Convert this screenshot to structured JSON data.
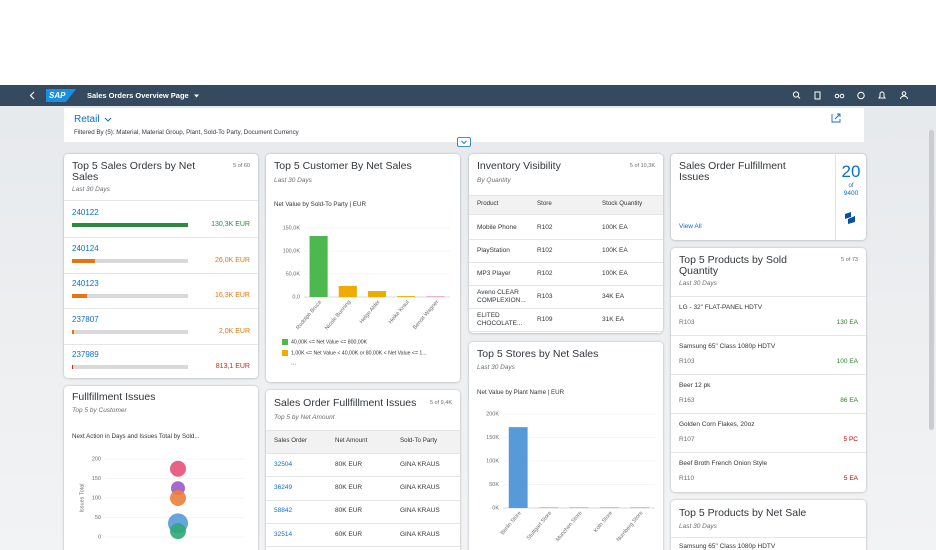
{
  "shell": {
    "logo": "SAP",
    "title": "Sales Orders Overview Page"
  },
  "header": {
    "title": "Retail",
    "filter": "Filtered By (5): Material, Material Group, Plant, Sold-To Party, Document Currency"
  },
  "sales_orders": {
    "title": "Top 5 Sales Orders by Net Sales",
    "count": "5 of 60",
    "subtitle": "Last 30 Days",
    "items": [
      {
        "id": "240122",
        "value": 130300,
        "value_label": "130,3K EUR",
        "color": "#2b8a3e"
      },
      {
        "id": "240124",
        "value": 26000,
        "value_label": "26,0K EUR",
        "color": "#e9730c"
      },
      {
        "id": "240123",
        "value": 16300,
        "value_label": "16,3K EUR",
        "color": "#e9730c"
      },
      {
        "id": "237807",
        "value": 2000,
        "value_label": "2,0K EUR",
        "color": "#e9730c"
      },
      {
        "id": "237989",
        "value": 813.1,
        "value_label": "813,1 EUR",
        "color": "#d0271d"
      }
    ]
  },
  "fulfillment_issues": {
    "title": "Fullfillment Issues",
    "subtitle": "Top 5 by Customer",
    "chart": {
      "type": "bubble",
      "title": "Next Action in Days and Issues Total by Sold...",
      "y_label": "Issues Total",
      "ylim": [
        0,
        200
      ],
      "yticks": [
        0,
        50,
        100,
        150,
        200
      ],
      "values": [
        175,
        125,
        100,
        35,
        15
      ],
      "sizes": [
        8,
        7,
        8,
        10,
        8
      ],
      "colors": [
        "#e8507a",
        "#9b59c8",
        "#eb7f3c",
        "#5899da",
        "#2fa874"
      ]
    }
  },
  "customer_sales": {
    "title": "Top 5 Customer By Net Sales",
    "subtitle": "Last 30 Days",
    "chart": {
      "type": "bar",
      "title": "Net Value by Sold-To Party | EUR",
      "categories": [
        "Rudolph Bruce",
        "Nicole Bunning",
        "Helge Alder",
        "Heike Kraut",
        "Benoit Wagner"
      ],
      "values": [
        132600,
        24000,
        13000,
        2000,
        1000
      ],
      "colors": [
        "#4cb84e",
        "#f0ab00",
        "#f0ab00",
        "#f0ab00",
        "#e0607e"
      ],
      "ylim": [
        0,
        150000
      ],
      "yticks": [
        {
          "value": 0,
          "label": "0,0"
        },
        {
          "value": 50000,
          "label": "50,0K"
        },
        {
          "value": 100000,
          "label": "100,0K"
        },
        {
          "value": 150000,
          "label": "150,0K"
        }
      ],
      "legend": [
        {
          "label": "40,00K <= Net Value <= 800,00K",
          "color": "#4cb84e"
        },
        {
          "label": "1,00K <= Net Value < 40,00K or 80,00K < Net Value <= 1...",
          "color": "#f0ab00"
        }
      ],
      "legend_more": "..."
    }
  },
  "order_fulfillment": {
    "title": "Sales Order Fullfillment Issues",
    "count": "5 of 9,4K",
    "subtitle": "Top 5 by Net Amount",
    "columns": [
      "Sales Order",
      "Net Amount",
      "Sold-To Party"
    ],
    "rows": [
      [
        "32504",
        "80K EUR",
        "GINA KRAUS"
      ],
      [
        "36249",
        "80K EUR",
        "GINA KRAUS"
      ],
      [
        "58842",
        "80K EUR",
        "GINA KRAUS"
      ],
      [
        "32514",
        "60K EUR",
        "GINA KRAUS"
      ]
    ]
  },
  "inventory": {
    "title": "Inventory Visibility",
    "count": "5 of 10,3K",
    "subtitle": "By Quantity",
    "columns": [
      "Product",
      "Store",
      "Stock Quantity"
    ],
    "rows": [
      [
        "Mobile Phone",
        "R102",
        "100K EA"
      ],
      [
        "PlayStation",
        "R102",
        "100K EA"
      ],
      [
        "MP3 Player",
        "R102",
        "100K EA"
      ],
      [
        "Aveno CLEAR COMPLEXION...",
        "R103",
        "34K EA"
      ],
      [
        "ELITED CHOCOLATE...",
        "R109",
        "31K EA"
      ]
    ]
  },
  "stores": {
    "title": "Top 5 Stores by Net Sales",
    "subtitle": "Last 30 Days",
    "chart": {
      "type": "bar",
      "title": "Net Value by Plant Name | EUR",
      "categories": [
        "Berlin Store",
        "Stuttgart Store",
        "Munchen Store",
        "Koln Store",
        "Nurnberg Store"
      ],
      "values": [
        172000,
        1000,
        1000,
        1000,
        1000
      ],
      "color": "#5899da",
      "ylim": [
        0,
        200000
      ],
      "yticks": [
        {
          "value": 0,
          "label": "0K"
        },
        {
          "value": 50000,
          "label": "50K"
        },
        {
          "value": 100000,
          "label": "100K"
        },
        {
          "value": 150000,
          "label": "150K"
        },
        {
          "value": 200000,
          "label": "200K"
        }
      ]
    }
  },
  "fulfillment_kpi": {
    "title": "Sales Order Fulfillment Issues",
    "value": "20",
    "of": "of",
    "total": "9400",
    "link": "View All"
  },
  "products_qty": {
    "title": "Top 5 Products by Sold Quantity",
    "count": "5 of 73",
    "subtitle": "Last 30 Days",
    "items": [
      {
        "name": "LG - 32\" FLAT-PANEL HDTV",
        "store": "R103",
        "value": "130 EA",
        "color": "#2b7d2b"
      },
      {
        "name": "Samsung 65\" Class 1080p HDTV",
        "store": "R103",
        "value": "100 EA",
        "color": "#2b7d2b"
      },
      {
        "name": "Beer 12 pk",
        "store": "R163",
        "value": "86 EA",
        "color": "#2b7d2b"
      },
      {
        "name": "Golden Corn Flakes, 20oz",
        "store": "R107",
        "value": "5 PC",
        "color": "#bb0000"
      },
      {
        "name": "Beef Broth French Onion Style",
        "store": "R110",
        "value": "5 EA",
        "color": "#bb0000"
      }
    ]
  },
  "products_sale": {
    "title": "Top 5 Products by Net Sale",
    "subtitle": "Last 30 Days",
    "items": [
      {
        "name": "Samsung 65\" Class 1080p HDTV"
      }
    ]
  }
}
